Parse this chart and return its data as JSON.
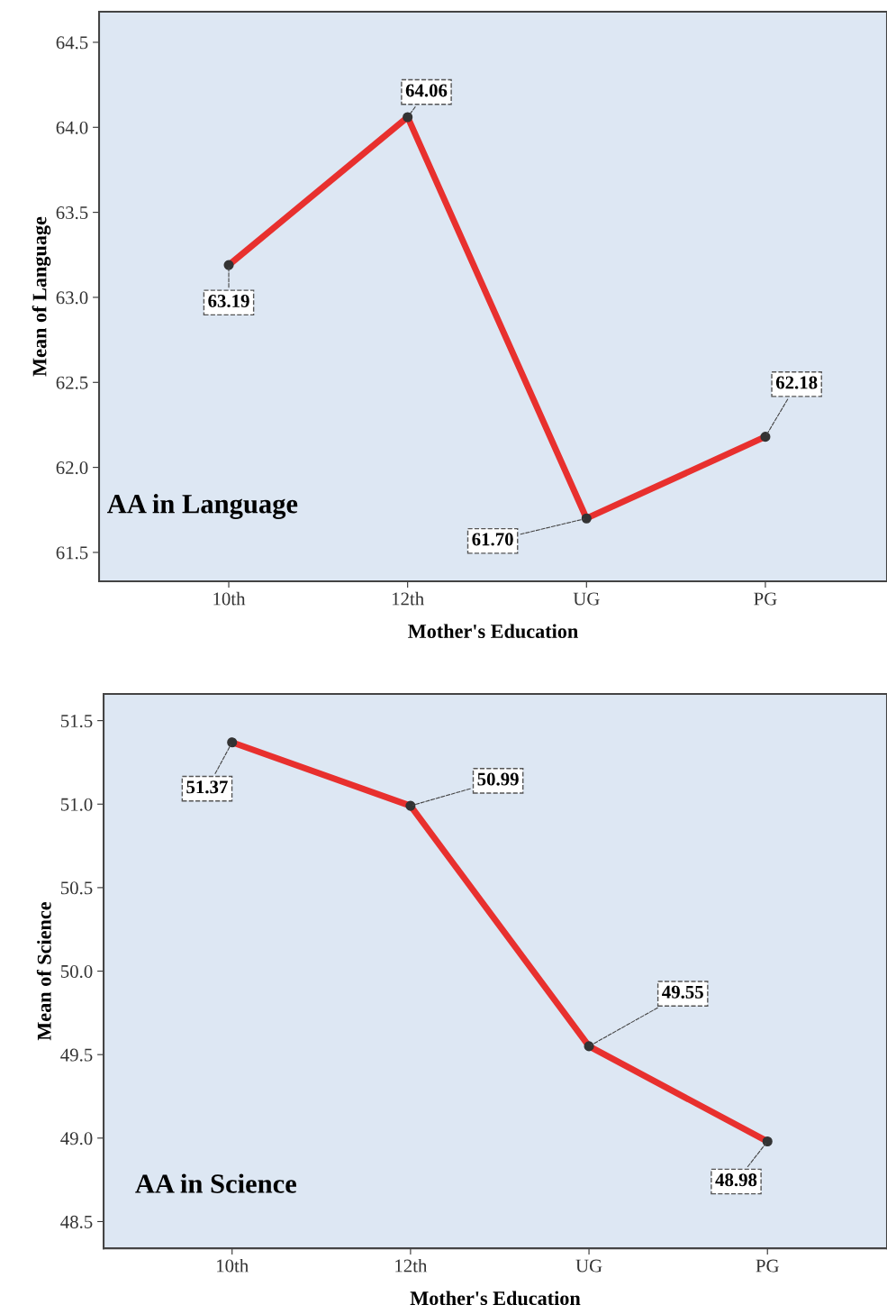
{
  "chart_data": [
    {
      "type": "line",
      "xlabel": "Mother's Education",
      "ylabel": "Mean of Language",
      "categories": [
        "10th",
        "12th",
        "UG",
        "PG"
      ],
      "series": [
        {
          "color": "#e8302e",
          "values": [
            63.19,
            64.06,
            61.7,
            62.18
          ]
        }
      ],
      "value_labels": [
        "63.19",
        "64.06",
        "61.70",
        "62.18"
      ],
      "ylim": [
        61.33,
        64.68
      ],
      "yticks": [
        {
          "value": 61.5,
          "label": "61.5"
        },
        {
          "value": 62.0,
          "label": "62.0"
        },
        {
          "value": 62.5,
          "label": "62.5"
        },
        {
          "value": 63.0,
          "label": "63.0"
        },
        {
          "value": 63.5,
          "label": "63.5"
        },
        {
          "value": 64.0,
          "label": "64.0"
        },
        {
          "value": 64.5,
          "label": "64.5"
        }
      ],
      "annotations": [
        "AA in Language"
      ],
      "marker": "circle",
      "grid": false,
      "legend": false
    },
    {
      "type": "line",
      "xlabel": "Mother's Education",
      "ylabel": "Mean of Science",
      "categories": [
        "10th",
        "12th",
        "UG",
        "PG"
      ],
      "series": [
        {
          "color": "#e8302e",
          "values": [
            51.37,
            50.99,
            49.55,
            48.98
          ]
        }
      ],
      "value_labels": [
        "51.37",
        "50.99",
        "49.55",
        "48.98"
      ],
      "ylim": [
        48.34,
        51.66
      ],
      "yticks": [
        {
          "value": 48.5,
          "label": "48.5"
        },
        {
          "value": 49.0,
          "label": "49.0"
        },
        {
          "value": 49.5,
          "label": "49.5"
        },
        {
          "value": 50.0,
          "label": "50.0"
        },
        {
          "value": 50.5,
          "label": "50.5"
        },
        {
          "value": 51.0,
          "label": "51.0"
        },
        {
          "value": 51.5,
          "label": "51.5"
        }
      ],
      "annotations": [
        "AA in Science"
      ],
      "marker": "circle",
      "grid": false,
      "legend": false
    }
  ]
}
